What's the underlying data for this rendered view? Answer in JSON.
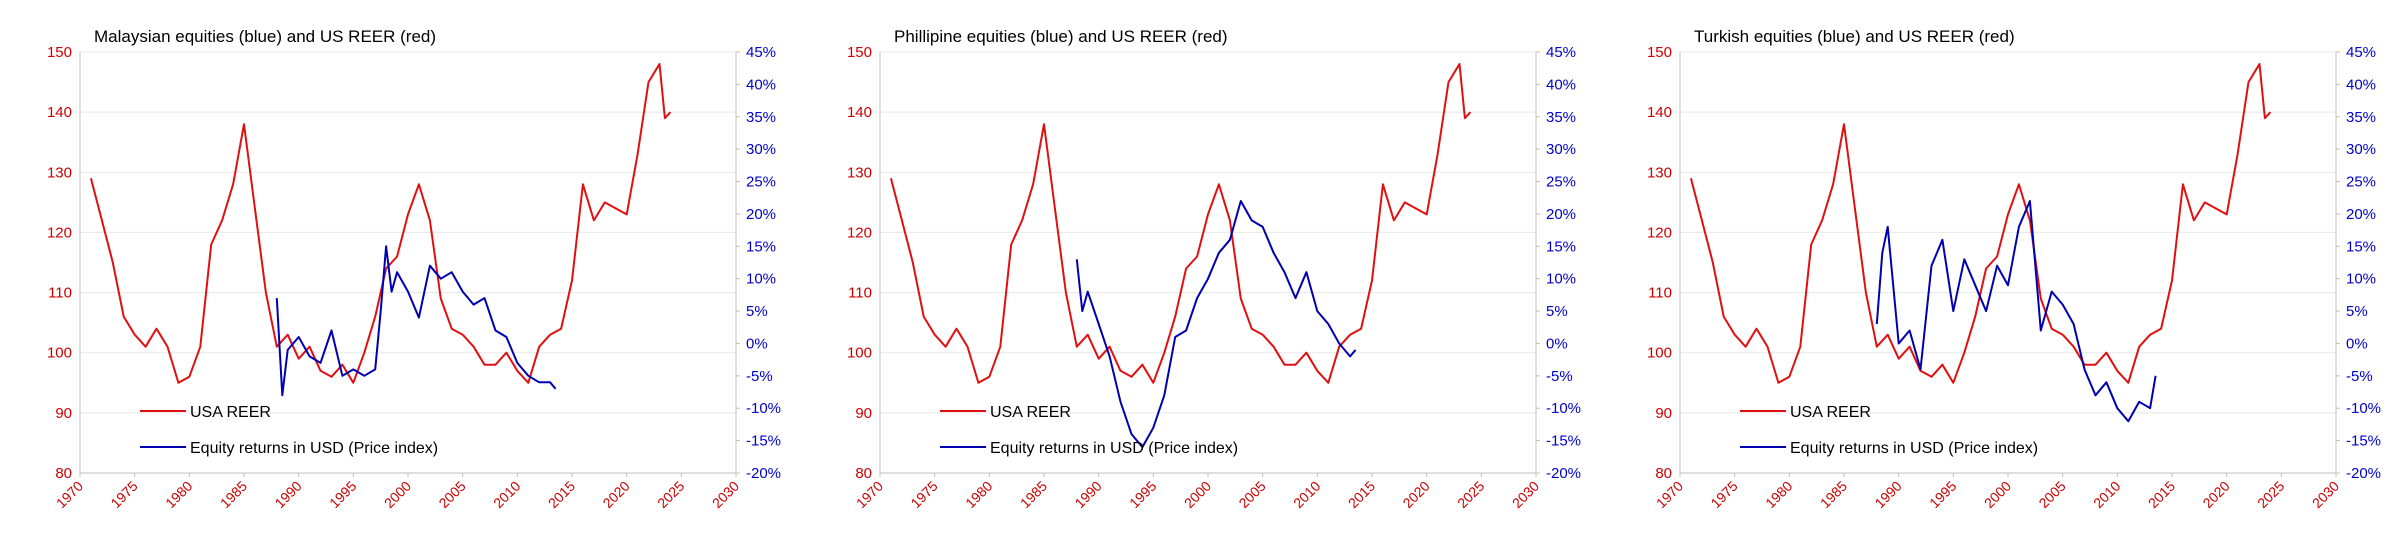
{
  "chart_data": [
    {
      "type": "line",
      "title": "Malaysian equities (blue) and US REER (red)",
      "x_ticks": [
        "1970",
        "1975",
        "1980",
        "1985",
        "1990",
        "1995",
        "2000",
        "2005",
        "2010",
        "2015",
        "2020",
        "2025",
        "2030"
      ],
      "xlim": [
        1970,
        2030
      ],
      "y_left_ticks": [
        "80",
        "90",
        "100",
        "110",
        "120",
        "130",
        "140",
        "150"
      ],
      "ylim_left": [
        80,
        150
      ],
      "y_right_ticks": [
        "45%",
        "40%",
        "35%",
        "30%",
        "25%",
        "20%",
        "15%",
        "10%",
        "5%",
        "0%",
        "-5%",
        "-10%",
        "-15%",
        "-20%"
      ],
      "ylim_right": [
        -20,
        45
      ],
      "grid": true,
      "legend_position": "bottom-left",
      "series": [
        {
          "name": "USA REER",
          "axis": "left",
          "color": "#e01010",
          "x": [
            1971,
            1972,
            1973,
            1974,
            1975,
            1976,
            1977,
            1978,
            1979,
            1980,
            1981,
            1982,
            1983,
            1984,
            1985,
            1986,
            1987,
            1988,
            1989,
            1990,
            1991,
            1992,
            1993,
            1994,
            1995,
            1996,
            1997,
            1998,
            1999,
            2000,
            2001,
            2002,
            2003,
            2004,
            2005,
            2006,
            2007,
            2008,
            2009,
            2010,
            2011,
            2012,
            2013,
            2014,
            2015,
            2016,
            2017,
            2018,
            2019,
            2020,
            2021,
            2022,
            2023,
            2023.5,
            2024
          ],
          "values": [
            129,
            122,
            115,
            106,
            103,
            101,
            104,
            101,
            95,
            96,
            101,
            118,
            122,
            128,
            138,
            124,
            110,
            101,
            103,
            99,
            101,
            97,
            96,
            98,
            95,
            100,
            106,
            114,
            116,
            123,
            128,
            122,
            109,
            104,
            103,
            101,
            98,
            98,
            100,
            97,
            95,
            101,
            103,
            104,
            112,
            128,
            122,
            125,
            124,
            123,
            133,
            145,
            148,
            139,
            140
          ]
        },
        {
          "name": "Equity returns in USD (Price index)",
          "axis": "right",
          "color": "#0000b0",
          "x": [
            1988,
            1988.5,
            1989,
            1990,
            1991,
            1992,
            1993,
            1994,
            1995,
            1996,
            1997,
            1997.5,
            1998,
            1998.5,
            1999,
            2000,
            2001,
            2002,
            2003,
            2004,
            2005,
            2006,
            2007,
            2008,
            2009,
            2010,
            2011,
            2012,
            2013,
            2013.5
          ],
          "values": [
            7,
            -8,
            -1,
            1,
            -2,
            -3,
            2,
            -5,
            -4,
            -5,
            -4,
            5,
            15,
            8,
            11,
            8,
            4,
            12,
            10,
            11,
            8,
            6,
            7,
            2,
            1,
            -3,
            -5,
            -6,
            -6,
            -7
          ]
        }
      ]
    },
    {
      "type": "line",
      "title": "Phillipine equities (blue) and US REER (red)",
      "x_ticks": [
        "1970",
        "1975",
        "1980",
        "1985",
        "1990",
        "1995",
        "2000",
        "2005",
        "2010",
        "2015",
        "2020",
        "2025",
        "2030"
      ],
      "xlim": [
        1970,
        2030
      ],
      "y_left_ticks": [
        "80",
        "90",
        "100",
        "110",
        "120",
        "130",
        "140",
        "150"
      ],
      "ylim_left": [
        80,
        150
      ],
      "y_right_ticks": [
        "45%",
        "40%",
        "35%",
        "30%",
        "25%",
        "20%",
        "15%",
        "10%",
        "5%",
        "0%",
        "-5%",
        "-10%",
        "-15%",
        "-20%"
      ],
      "ylim_right": [
        -20,
        45
      ],
      "grid": true,
      "legend_position": "bottom-left",
      "series": [
        {
          "name": "USA REER",
          "axis": "left",
          "color": "#e01010",
          "x": [
            1971,
            1972,
            1973,
            1974,
            1975,
            1976,
            1977,
            1978,
            1979,
            1980,
            1981,
            1982,
            1983,
            1984,
            1985,
            1986,
            1987,
            1988,
            1989,
            1990,
            1991,
            1992,
            1993,
            1994,
            1995,
            1996,
            1997,
            1998,
            1999,
            2000,
            2001,
            2002,
            2003,
            2004,
            2005,
            2006,
            2007,
            2008,
            2009,
            2010,
            2011,
            2012,
            2013,
            2014,
            2015,
            2016,
            2017,
            2018,
            2019,
            2020,
            2021,
            2022,
            2023,
            2023.5,
            2024
          ],
          "values": [
            129,
            122,
            115,
            106,
            103,
            101,
            104,
            101,
            95,
            96,
            101,
            118,
            122,
            128,
            138,
            124,
            110,
            101,
            103,
            99,
            101,
            97,
            96,
            98,
            95,
            100,
            106,
            114,
            116,
            123,
            128,
            122,
            109,
            104,
            103,
            101,
            98,
            98,
            100,
            97,
            95,
            101,
            103,
            104,
            112,
            128,
            122,
            125,
            124,
            123,
            133,
            145,
            148,
            139,
            140
          ]
        },
        {
          "name": "Equity returns in USD (Price index)",
          "axis": "right",
          "color": "#0000b0",
          "x": [
            1988,
            1988.5,
            1989,
            1990,
            1991,
            1992,
            1993,
            1994,
            1995,
            1996,
            1997,
            1998,
            1999,
            2000,
            2001,
            2002,
            2003,
            2004,
            2005,
            2006,
            2007,
            2008,
            2009,
            2010,
            2011,
            2012,
            2013,
            2013.5
          ],
          "values": [
            13,
            5,
            8,
            3,
            -2,
            -9,
            -14,
            -16,
            -13,
            -8,
            1,
            2,
            7,
            10,
            14,
            16,
            22,
            19,
            18,
            14,
            11,
            7,
            11,
            5,
            3,
            0,
            -2,
            -1
          ]
        }
      ]
    },
    {
      "type": "line",
      "title": "Turkish equities (blue) and US REER (red)",
      "x_ticks": [
        "1970",
        "1975",
        "1980",
        "1985",
        "1990",
        "1995",
        "2000",
        "2005",
        "2010",
        "2015",
        "2020",
        "2025",
        "2030"
      ],
      "xlim": [
        1970,
        2030
      ],
      "y_left_ticks": [
        "80",
        "90",
        "100",
        "110",
        "120",
        "130",
        "140",
        "150"
      ],
      "ylim_left": [
        80,
        150
      ],
      "y_right_ticks": [
        "45%",
        "40%",
        "35%",
        "30%",
        "25%",
        "20%",
        "15%",
        "10%",
        "5%",
        "0%",
        "-5%",
        "-10%",
        "-15%",
        "-20%"
      ],
      "ylim_right": [
        -20,
        45
      ],
      "grid": true,
      "legend_position": "bottom-left",
      "series": [
        {
          "name": "USA REER",
          "axis": "left",
          "color": "#e01010",
          "x": [
            1971,
            1972,
            1973,
            1974,
            1975,
            1976,
            1977,
            1978,
            1979,
            1980,
            1981,
            1982,
            1983,
            1984,
            1985,
            1986,
            1987,
            1988,
            1989,
            1990,
            1991,
            1992,
            1993,
            1994,
            1995,
            1996,
            1997,
            1998,
            1999,
            2000,
            2001,
            2002,
            2003,
            2004,
            2005,
            2006,
            2007,
            2008,
            2009,
            2010,
            2011,
            2012,
            2013,
            2014,
            2015,
            2016,
            2017,
            2018,
            2019,
            2020,
            2021,
            2022,
            2023,
            2023.5,
            2024
          ],
          "values": [
            129,
            122,
            115,
            106,
            103,
            101,
            104,
            101,
            95,
            96,
            101,
            118,
            122,
            128,
            138,
            124,
            110,
            101,
            103,
            99,
            101,
            97,
            96,
            98,
            95,
            100,
            106,
            114,
            116,
            123,
            128,
            122,
            109,
            104,
            103,
            101,
            98,
            98,
            100,
            97,
            95,
            101,
            103,
            104,
            112,
            128,
            122,
            125,
            124,
            123,
            133,
            145,
            148,
            139,
            140
          ]
        },
        {
          "name": "Equity returns in USD (Price index)",
          "axis": "right",
          "color": "#0000b0",
          "x": [
            1988,
            1988.5,
            1989,
            1990,
            1991,
            1992,
            1993,
            1994,
            1995,
            1996,
            1997,
            1998,
            1999,
            2000,
            2001,
            2002,
            2003,
            2004,
            2005,
            2006,
            2007,
            2008,
            2009,
            2010,
            2011,
            2012,
            2013,
            2013.5
          ],
          "values": [
            3,
            14,
            18,
            0,
            2,
            -4,
            12,
            16,
            5,
            13,
            9,
            5,
            12,
            9,
            18,
            22,
            2,
            8,
            6,
            3,
            -4,
            -8,
            -6,
            -10,
            -12,
            -9,
            -10,
            -5
          ]
        }
      ]
    }
  ]
}
